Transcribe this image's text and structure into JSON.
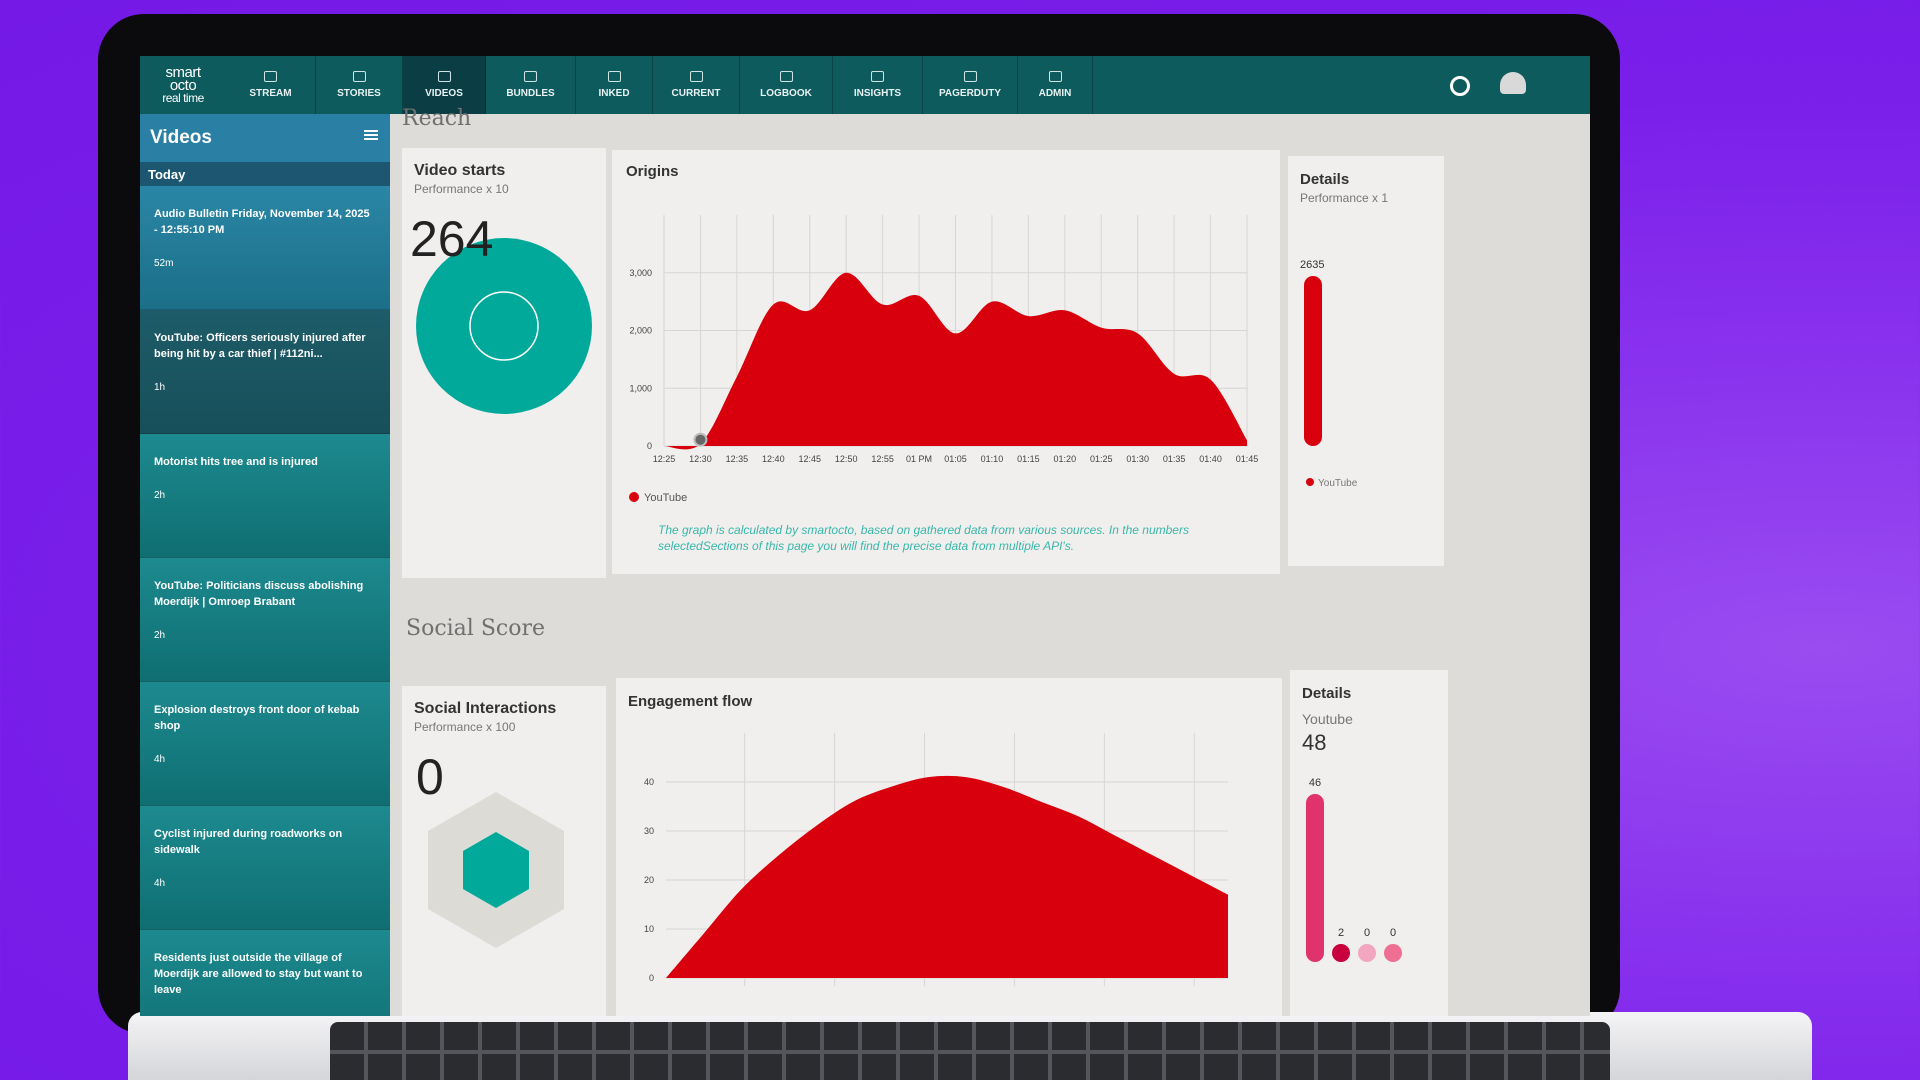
{
  "nav": {
    "logo": [
      "smart",
      "octo",
      "real time"
    ],
    "items": [
      "STREAM",
      "STORIES",
      "VIDEOS",
      "BUNDLES",
      "INKED",
      "CURRENT",
      "LOGBOOK",
      "INSIGHTS",
      "PAGERDUTY",
      "ADMIN"
    ]
  },
  "sidebar": {
    "title": "Videos",
    "section": "Today",
    "items": [
      {
        "title": "Audio Bulletin Friday, November 14, 2025 - 12:55:10 PM",
        "time": "52m"
      },
      {
        "title": "YouTube: Officers seriously injured after being hit by a car thief | #112ni...",
        "time": "1h"
      },
      {
        "title": "Motorist hits tree and is injured",
        "time": "2h"
      },
      {
        "title": "YouTube: Politicians discuss abolishing Moerdijk | Omroep Brabant",
        "time": "2h"
      },
      {
        "title": "Explosion destroys front door of kebab shop",
        "time": "4h"
      },
      {
        "title": "Cyclist injured during roadworks on sidewalk",
        "time": "4h"
      },
      {
        "title": "Residents just outside the village of Moerdijk are allowed to stay but want to leave",
        "time": ""
      }
    ]
  },
  "reach": {
    "heading": "Reach",
    "video_starts": {
      "title": "Video starts",
      "subtitle": "Performance x 10",
      "value": 264
    },
    "origins": {
      "type": "area",
      "title": "Origins",
      "x": [
        "12:25",
        "12:30",
        "12:35",
        "12:40",
        "12:45",
        "12:50",
        "12:55",
        "01 PM",
        "01:05",
        "01:10",
        "01:15",
        "01:20",
        "01:25",
        "01:30",
        "01:35",
        "01:40",
        "01:45"
      ],
      "series": [
        {
          "name": "YouTube",
          "color": "#d9000d",
          "values": [
            0,
            40,
            1200,
            2450,
            2350,
            3000,
            2450,
            2600,
            1950,
            2500,
            2250,
            2350,
            2050,
            1950,
            1250,
            1150,
            100
          ]
        }
      ],
      "ylim": [
        0,
        4000
      ],
      "yticks": [
        0,
        {
          "value": 1000,
          "label": "1,000"
        },
        {
          "value": 2000,
          "label": "2,000"
        },
        {
          "value": 3000,
          "label": "3,000"
        }
      ],
      "grid": true,
      "note": "The graph is calculated by smartocto, based on gathered data from various sources. In the numbers selectedSections of this page you will find the precise data from multiple API's."
    },
    "details": {
      "title": "Details",
      "subtitle": "Performance x 1",
      "bars": [
        {
          "name": "YouTube",
          "value": 2635,
          "color": "#d9000d"
        }
      ]
    }
  },
  "social": {
    "heading": "Social Score",
    "interactions": {
      "title": "Social Interactions",
      "subtitle": "Performance x 100",
      "value": 0
    },
    "engagement": {
      "type": "area",
      "title": "Engagement flow",
      "series": [
        {
          "color": "#d9000d",
          "values": [
            0,
            9,
            18,
            25,
            31,
            36,
            39,
            41,
            41,
            39,
            36,
            33,
            29,
            25,
            21,
            17
          ]
        }
      ],
      "ylim": [
        0,
        50
      ],
      "yticks": [
        0,
        10,
        20,
        30,
        40
      ],
      "grid": true
    },
    "details": {
      "title": "Details",
      "source": "Youtube",
      "total": 48,
      "bars": [
        {
          "value": 46,
          "color": "#e0336e"
        },
        {
          "value": 2,
          "color": "#c8003d"
        },
        {
          "value": 0,
          "color": "#f2a6bf"
        },
        {
          "value": 0,
          "color": "#ee6f91"
        }
      ]
    }
  }
}
